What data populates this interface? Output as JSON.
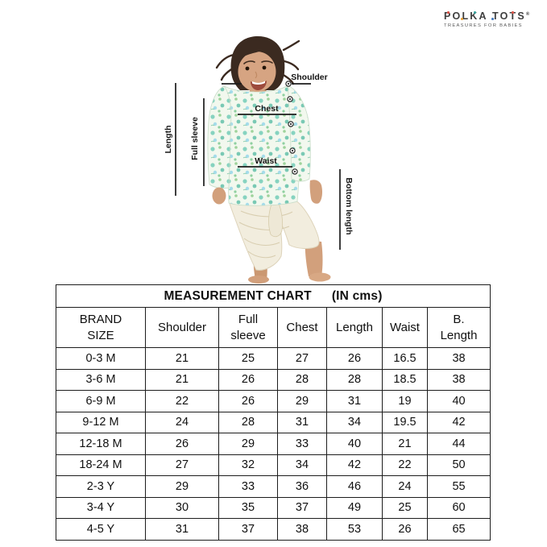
{
  "logo": {
    "brand": "POLKA TOTS",
    "registered": "®",
    "tagline": "TREASURES FOR BABIES",
    "dot_colors": [
      "#d94f43",
      "#e8a33d",
      "#3aa49e",
      "#4c7fc0",
      "#d94f43"
    ]
  },
  "diagram": {
    "labels": {
      "shoulder": "Shoulder",
      "chest": "Chest",
      "waist": "Waist",
      "length": "Length",
      "full_sleeve": "Full sleeve",
      "bottom_length": "Bottom length"
    }
  },
  "table": {
    "title": "MEASUREMENT CHART",
    "unit": "(IN cms)",
    "columns": [
      "BRAND\nSIZE",
      "Shoulder",
      "Full\nsleeve",
      "Chest",
      "Length",
      "Waist",
      "B.\nLength"
    ],
    "rows": [
      {
        "size": "0-3 M",
        "values": [
          21,
          25,
          27,
          26,
          16.5,
          38
        ]
      },
      {
        "size": "3-6 M",
        "values": [
          21,
          26,
          28,
          28,
          18.5,
          38
        ]
      },
      {
        "size": "6-9 M",
        "values": [
          22,
          26,
          29,
          31,
          19,
          40
        ]
      },
      {
        "size": "9-12 M",
        "values": [
          24,
          28,
          31,
          34,
          19.5,
          42
        ]
      },
      {
        "size": "12-18 M",
        "values": [
          26,
          29,
          33,
          40,
          21,
          44
        ]
      },
      {
        "size": "18-24 M",
        "values": [
          27,
          32,
          34,
          42,
          22,
          50
        ]
      },
      {
        "size": "2-3 Y",
        "values": [
          29,
          33,
          36,
          46,
          24,
          55
        ]
      },
      {
        "size": "3-4 Y",
        "values": [
          30,
          35,
          37,
          49,
          25,
          60
        ]
      },
      {
        "size": "4-5 Y",
        "values": [
          31,
          37,
          38,
          53,
          26,
          65
        ]
      }
    ]
  }
}
